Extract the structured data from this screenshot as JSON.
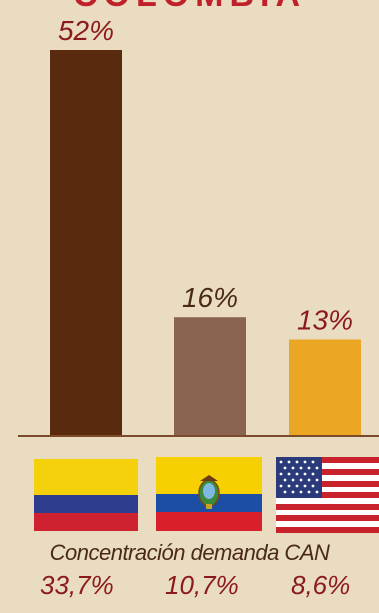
{
  "header": {
    "title_fragment": "COLOMBIA"
  },
  "chart_data": {
    "type": "bar",
    "categories": [
      "Colombia",
      "Ecuador",
      "Estados Unidos"
    ],
    "values": [
      52,
      16,
      13
    ],
    "value_labels": [
      "52%",
      "16%",
      "13%"
    ],
    "bar_colors": [
      "#5a2a0f",
      "#8a6450",
      "#eba623"
    ],
    "label_colors": [
      "#8b1a1a",
      "#4a2a17",
      "#8b1a1a"
    ],
    "ylim": [
      0,
      52
    ],
    "grid": false,
    "legend": "none"
  },
  "flags": [
    {
      "country": "Colombia",
      "icon": "colombia-flag-icon"
    },
    {
      "country": "Ecuador",
      "icon": "ecuador-flag-icon"
    },
    {
      "country": "Estados Unidos",
      "icon": "usa-flag-icon"
    }
  ],
  "footer": {
    "subtitle": "Concentración demanda CAN",
    "shares": [
      "33,7%",
      "10,7%",
      "8,6%"
    ]
  }
}
